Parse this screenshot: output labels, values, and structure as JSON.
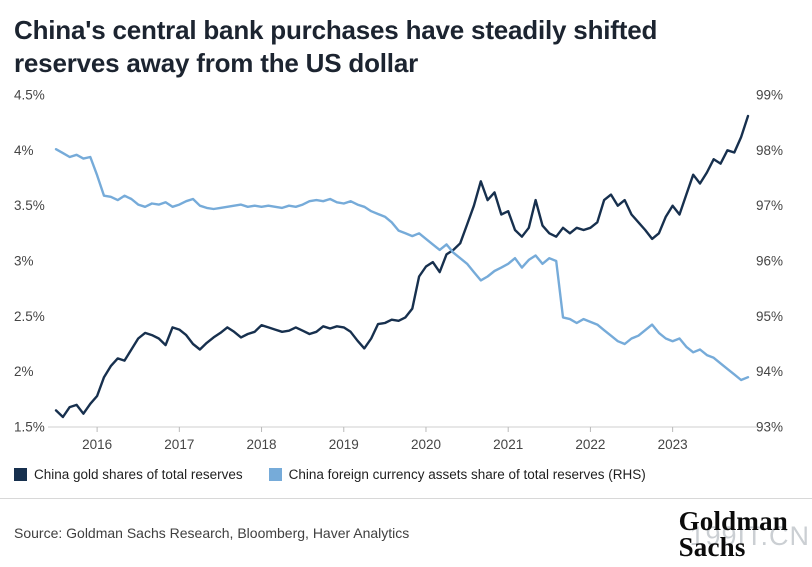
{
  "title": "China's central bank purchases have steadily shifted reserves away from the US dollar",
  "source": "Source: Goldman Sachs Research, Bloomberg, Haver Analytics",
  "logo": {
    "line1": "Goldman",
    "line2": "Sachs"
  },
  "watermark": "199IT.CN",
  "colors": {
    "gold_line": "#17304e",
    "fx_line": "#76abd9",
    "axis": "#cfcfcf"
  },
  "chart_data": {
    "type": "line",
    "title": "China's central bank purchases have steadily shifted reserves away from the US dollar",
    "frequency": "monthly",
    "x_start": "2015-07",
    "x_end": "2023-12",
    "grid": false,
    "legend_position": "bottom",
    "xticks": [
      "2016",
      "2017",
      "2018",
      "2019",
      "2020",
      "2021",
      "2022",
      "2023"
    ],
    "left_axis": {
      "min": 1.5,
      "max": 4.5,
      "tick_values": [
        1.5,
        2,
        2.5,
        3,
        3.5,
        4,
        4.5
      ],
      "ticks": [
        "1.5%",
        "2%",
        "2.5%",
        "3%",
        "3.5%",
        "4%",
        "4.5%"
      ]
    },
    "right_axis": {
      "min": 93,
      "max": 99,
      "tick_values": [
        93,
        94,
        95,
        96,
        97,
        98,
        99
      ],
      "ticks": [
        "93%",
        "94%",
        "95%",
        "96%",
        "97%",
        "98%",
        "99%"
      ]
    },
    "series": [
      {
        "name": "China gold shares of total reserves",
        "axis": "left",
        "color": "#17304e",
        "values": [
          1.65,
          1.59,
          1.68,
          1.7,
          1.62,
          1.71,
          1.78,
          1.95,
          2.05,
          2.12,
          2.1,
          2.2,
          2.3,
          2.35,
          2.33,
          2.3,
          2.24,
          2.4,
          2.38,
          2.33,
          2.25,
          2.2,
          2.26,
          2.31,
          2.35,
          2.4,
          2.36,
          2.31,
          2.34,
          2.36,
          2.42,
          2.4,
          2.38,
          2.36,
          2.37,
          2.4,
          2.37,
          2.34,
          2.36,
          2.41,
          2.39,
          2.41,
          2.4,
          2.36,
          2.28,
          2.21,
          2.3,
          2.43,
          2.44,
          2.47,
          2.46,
          2.49,
          2.57,
          2.86,
          2.95,
          2.99,
          2.9,
          3.06,
          3.1,
          3.16,
          3.33,
          3.5,
          3.72,
          3.55,
          3.62,
          3.42,
          3.45,
          3.28,
          3.22,
          3.3,
          3.55,
          3.32,
          3.25,
          3.22,
          3.3,
          3.25,
          3.3,
          3.28,
          3.3,
          3.35,
          3.55,
          3.6,
          3.5,
          3.55,
          3.42,
          3.35,
          3.28,
          3.2,
          3.25,
          3.4,
          3.5,
          3.42,
          3.6,
          3.78,
          3.7,
          3.8,
          3.92,
          3.88,
          4.0,
          3.98,
          4.12,
          4.31
        ]
      },
      {
        "name": "China foreign currency assets share of total reserves (RHS)",
        "axis": "right",
        "color": "#76abd9",
        "values": [
          98.02,
          97.95,
          97.88,
          97.92,
          97.85,
          97.88,
          97.55,
          97.18,
          97.16,
          97.1,
          97.18,
          97.12,
          97.02,
          96.98,
          97.04,
          97.02,
          97.06,
          96.98,
          97.02,
          97.08,
          97.12,
          97.0,
          96.96,
          96.94,
          96.96,
          96.98,
          97.0,
          97.02,
          96.98,
          97.0,
          96.98,
          97.0,
          96.98,
          96.96,
          97.0,
          96.98,
          97.02,
          97.08,
          97.1,
          97.08,
          97.12,
          97.06,
          97.04,
          97.08,
          97.02,
          96.98,
          96.9,
          96.85,
          96.8,
          96.7,
          96.55,
          96.5,
          96.45,
          96.5,
          96.4,
          96.3,
          96.2,
          96.3,
          96.15,
          96.05,
          95.95,
          95.8,
          95.65,
          95.72,
          95.82,
          95.88,
          95.95,
          96.05,
          95.88,
          96.02,
          96.1,
          95.95,
          96.05,
          96.0,
          94.98,
          94.95,
          94.88,
          94.95,
          94.9,
          94.85,
          94.75,
          94.65,
          94.55,
          94.5,
          94.6,
          94.65,
          94.75,
          94.85,
          94.7,
          94.6,
          94.55,
          94.6,
          94.45,
          94.35,
          94.4,
          94.3,
          94.25,
          94.15,
          94.05,
          93.95,
          93.85,
          93.9
        ]
      }
    ]
  }
}
